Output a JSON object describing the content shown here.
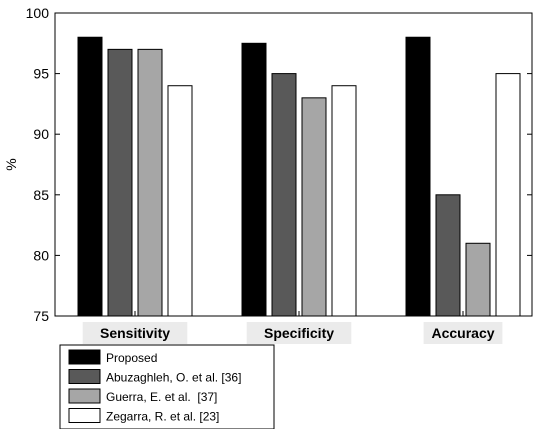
{
  "chart_data": {
    "type": "bar",
    "title": "",
    "xlabel": "",
    "ylabel": "%",
    "ylim": [
      75,
      100
    ],
    "yticks": [
      75,
      80,
      85,
      90,
      95,
      100
    ],
    "grid": false,
    "legend_position": "bottom-left",
    "categories": [
      "Sensitivity",
      "Specificity",
      "Accuracy"
    ],
    "series": [
      {
        "name": "Proposed",
        "color": "#000000",
        "values": [
          98,
          97.5,
          98
        ]
      },
      {
        "name": "Abuzaghleh, O. et al. [36]",
        "color": "#595959",
        "values": [
          97,
          95,
          85
        ]
      },
      {
        "name": "Guerra, E. et al.  [37]",
        "color": "#a6a6a6",
        "values": [
          97,
          93,
          81
        ]
      },
      {
        "name": "Zegarra, R. et al. [23]",
        "color": "#ffffff",
        "values": [
          94,
          94,
          95
        ]
      }
    ]
  },
  "colors": {
    "category_label_background": "#ebebeb",
    "axis": "#000000",
    "bar_edge": "#000000"
  }
}
